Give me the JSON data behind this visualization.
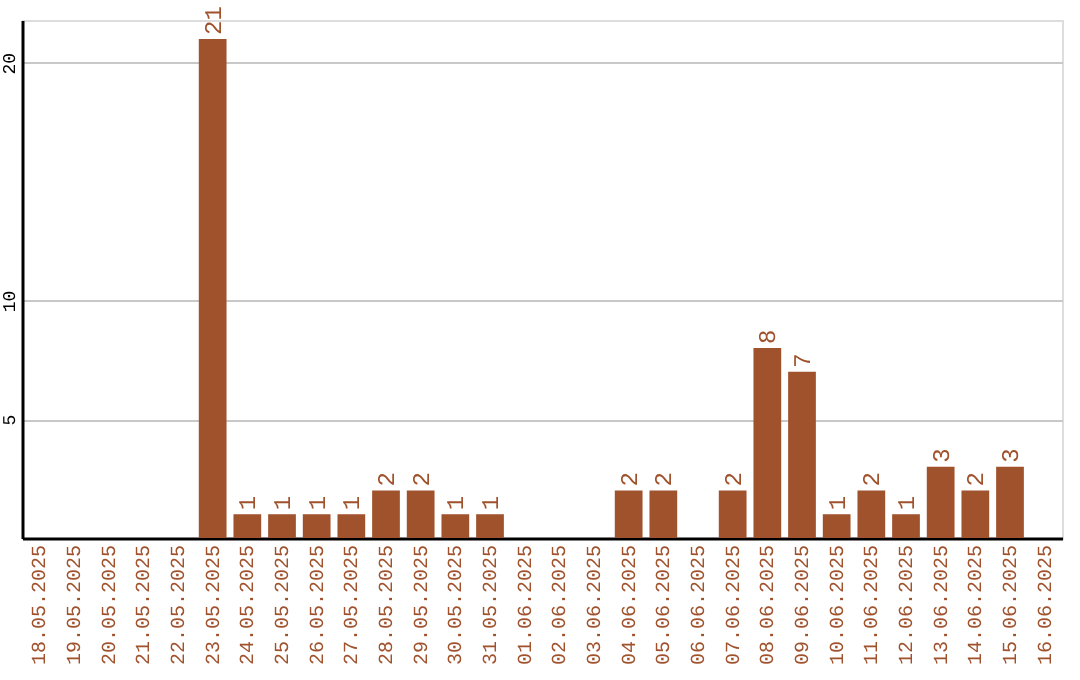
{
  "chart_data": {
    "type": "bar",
    "categories": [
      "18.05.2025",
      "19.05.2025",
      "20.05.2025",
      "21.05.2025",
      "22.05.2025",
      "23.05.2025",
      "24.05.2025",
      "25.05.2025",
      "26.05.2025",
      "27.05.2025",
      "28.05.2025",
      "29.05.2025",
      "30.05.2025",
      "31.05.2025",
      "01.06.2025",
      "02.06.2025",
      "03.06.2025",
      "04.06.2025",
      "05.06.2025",
      "06.06.2025",
      "07.06.2025",
      "08.06.2025",
      "09.06.2025",
      "10.06.2025",
      "11.06.2025",
      "12.06.2025",
      "13.06.2025",
      "14.06.2025",
      "15.06.2025",
      "16.06.2025"
    ],
    "values": [
      0,
      0,
      0,
      0,
      0,
      21,
      1,
      1,
      1,
      1,
      2,
      2,
      1,
      1,
      0,
      0,
      0,
      2,
      2,
      0,
      2,
      8,
      7,
      1,
      2,
      1,
      3,
      2,
      3,
      0
    ],
    "value_labels": [
      null,
      null,
      null,
      null,
      null,
      "21",
      "1",
      "1",
      "1",
      "1",
      "2",
      "2",
      "1",
      "1",
      null,
      null,
      null,
      "2",
      "2",
      null,
      "2",
      "8",
      "7",
      "1",
      "2",
      "1",
      "3",
      "2",
      "3",
      null
    ],
    "color": "#a0522d",
    "ylim": [
      0,
      21.8
    ],
    "yticks": [
      5,
      10,
      20
    ],
    "grid": "y"
  }
}
